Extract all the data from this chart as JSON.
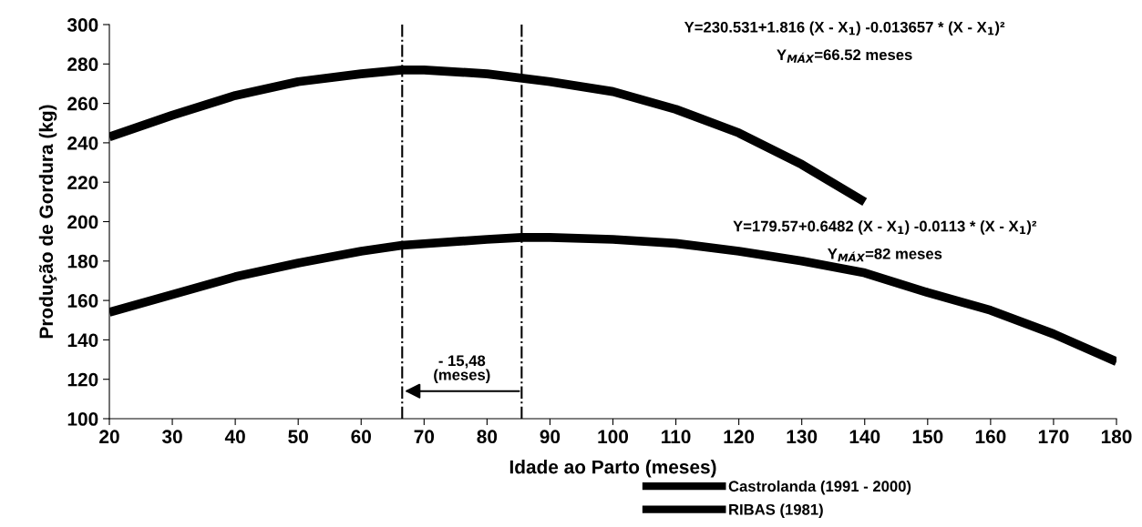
{
  "chart_data": {
    "type": "line",
    "xlabel": "Idade ao Parto (meses)",
    "ylabel": "Produção de Gordura (kg)",
    "xlim": [
      20,
      180
    ],
    "xticks": [
      20,
      30,
      40,
      50,
      60,
      70,
      80,
      90,
      100,
      110,
      120,
      130,
      140,
      150,
      160,
      170,
      180
    ],
    "ylim": [
      100,
      300
    ],
    "yticks": [
      100,
      120,
      140,
      160,
      180,
      200,
      220,
      240,
      260,
      280,
      300
    ],
    "grid": false,
    "legend": "bottom right",
    "marker": "none",
    "line_style": "solid",
    "series": [
      {
        "name": "Castrolanda (1991 - 2000)",
        "color": "#000000",
        "x": [
          20,
          30,
          40,
          50,
          60,
          66.5,
          70,
          80,
          90,
          100,
          110,
          120,
          130,
          140
        ],
        "values": [
          243,
          254,
          264,
          271,
          275,
          277,
          277,
          275,
          271,
          266,
          257,
          245,
          229,
          210
        ]
      },
      {
        "name": "RIBAS (1981)",
        "color": "#000000",
        "x": [
          20,
          30,
          40,
          50,
          60,
          66.5,
          80,
          85.5,
          90,
          100,
          110,
          120,
          130,
          140,
          150,
          160,
          170,
          180
        ],
        "values": [
          154,
          163,
          172,
          179,
          185,
          188,
          191,
          192,
          192,
          191,
          189,
          185,
          180,
          174,
          164,
          155,
          143,
          129
        ]
      }
    ],
    "ref_lines": [
      {
        "axis": "x",
        "value": 66.52,
        "color": "#000000",
        "line_style": "dashdot"
      },
      {
        "axis": "x",
        "value": 85.5,
        "color": "#000000",
        "line_style": "dashdot"
      }
    ],
    "annotations": [
      "Y=230.531+1.816 (X - X$_{1}$) -0.013657 * (X - X$_{1}$)²",
      "Y$_{MÁX}$=66.52 meses",
      "Y=179.57+0.6482 (X - X$_{1}$) -0.0113 * (X - X$_{1}$)²",
      "Y$_{MÁX}$=82 meses",
      "- 15,48\n(meses)"
    ]
  }
}
